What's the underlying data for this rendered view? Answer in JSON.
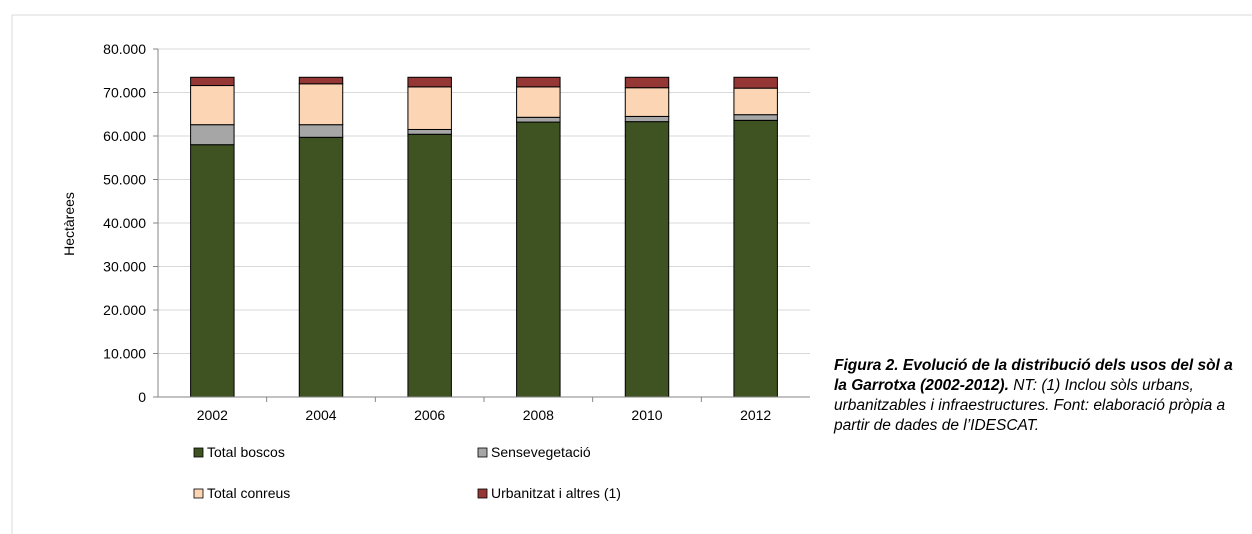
{
  "chart_data": {
    "type": "bar",
    "stacked": true,
    "categories": [
      "2002",
      "2004",
      "2006",
      "2008",
      "2010",
      "2012"
    ],
    "series": [
      {
        "name": "Total boscos",
        "color": "#3f5322",
        "values": [
          58000,
          59700,
          60400,
          63200,
          63300,
          63600
        ]
      },
      {
        "name": "Sensevegetació",
        "color": "#a6a6a6",
        "values": [
          4600,
          2900,
          1100,
          1100,
          1200,
          1300
        ]
      },
      {
        "name": "Total conreus",
        "color": "#fcd5b5",
        "values": [
          9000,
          9400,
          9800,
          7000,
          6600,
          6100
        ]
      },
      {
        "name": "Urbanitzat i altres (1)",
        "color": "#953735",
        "values": [
          1900,
          1500,
          2200,
          2200,
          2400,
          2500
        ]
      }
    ],
    "ylabel": "Hectàrees",
    "xlabel": "",
    "ylim": [
      0,
      80000
    ],
    "yticks": [
      "0",
      "10.000",
      "20.000",
      "30.000",
      "40.000",
      "50.000",
      "60.000",
      "70.000",
      "80.000"
    ],
    "grid": true,
    "legend_position": "bottom"
  },
  "caption": {
    "title": "Figura 2. Evolució de la distribució dels usos del sòl a la Garrotxa (2002-2012).",
    "note": " NT: (1) Inclou sòls urbans, urbanitzables i infraestructures. Font: elaboració pròpia a partir de dades de l’IDESCAT."
  }
}
